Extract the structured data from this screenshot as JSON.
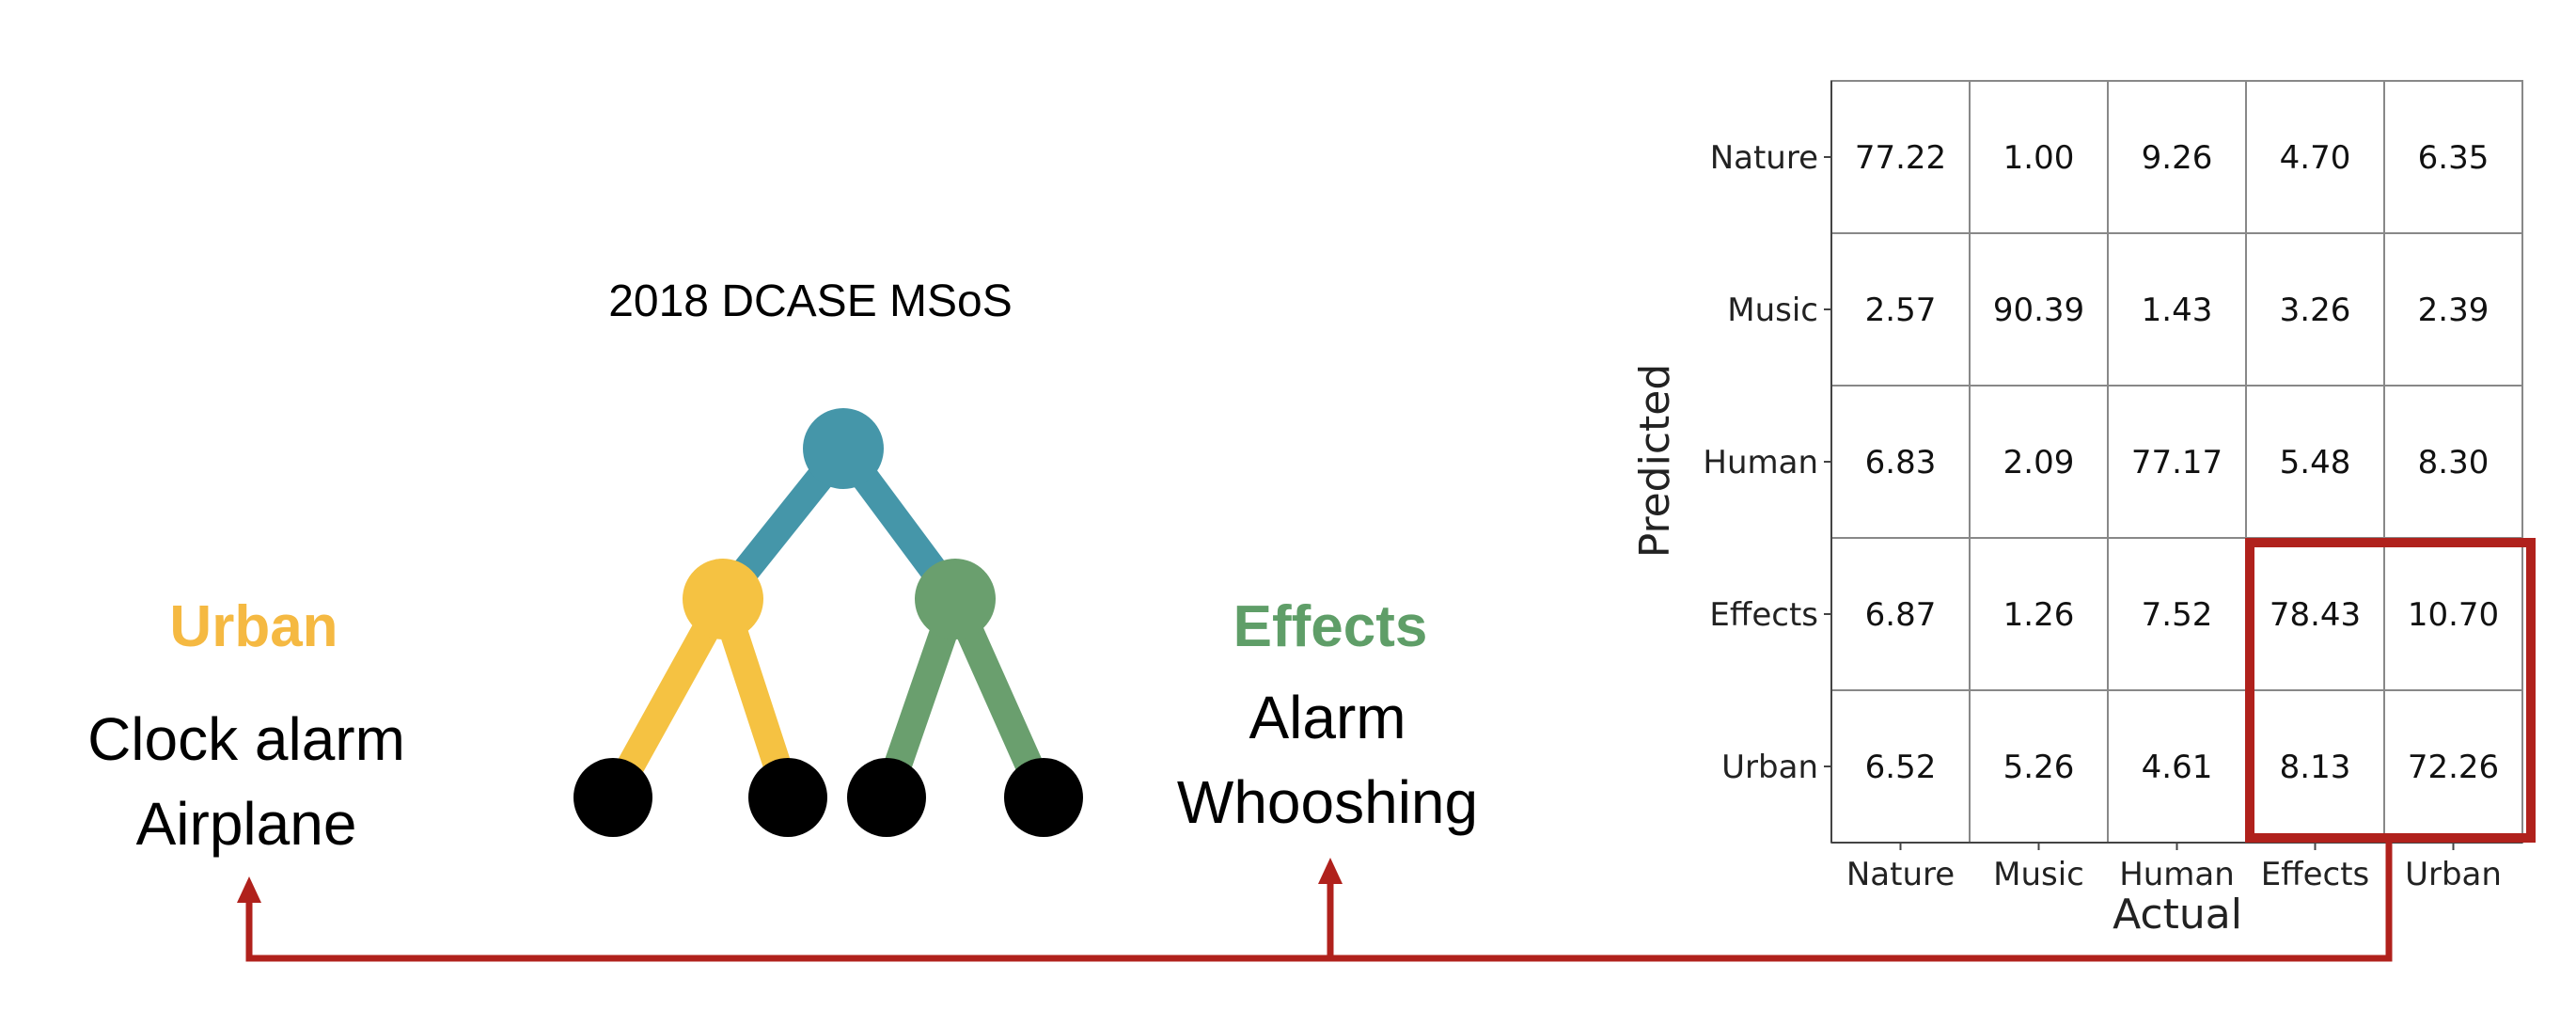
{
  "tree": {
    "title": "2018 DCASE MSoS",
    "colors": {
      "root": "#4596a9",
      "urban": "#f5c242",
      "effects": "#6a9f6e",
      "leaf": "#000000"
    }
  },
  "left_group": {
    "label": "Urban",
    "examples": [
      "Clock alarm",
      "Airplane"
    ]
  },
  "right_group": {
    "label": "Effects",
    "examples": [
      "Alarm",
      "Whooshing"
    ]
  },
  "chart_data": {
    "type": "heatmap",
    "xlabel": "Actual",
    "ylabel": "Predicted",
    "x_categories": [
      "Nature",
      "Music",
      "Human",
      "Effects",
      "Urban"
    ],
    "y_categories": [
      "Nature",
      "Music",
      "Human",
      "Effects",
      "Urban"
    ],
    "values": [
      [
        "77.22",
        "1.00",
        "9.26",
        "4.70",
        "6.35"
      ],
      [
        "2.57",
        "90.39",
        "1.43",
        "3.26",
        "2.39"
      ],
      [
        "6.83",
        "2.09",
        "77.17",
        "5.48",
        "8.30"
      ],
      [
        "6.87",
        "1.26",
        "7.52",
        "78.43",
        "10.70"
      ],
      [
        "6.52",
        "5.26",
        "4.61",
        "8.13",
        "72.26"
      ]
    ],
    "highlight": {
      "rows": [
        "Effects",
        "Urban"
      ],
      "columns": [
        "Effects",
        "Urban"
      ],
      "color": "#b0211c"
    }
  }
}
